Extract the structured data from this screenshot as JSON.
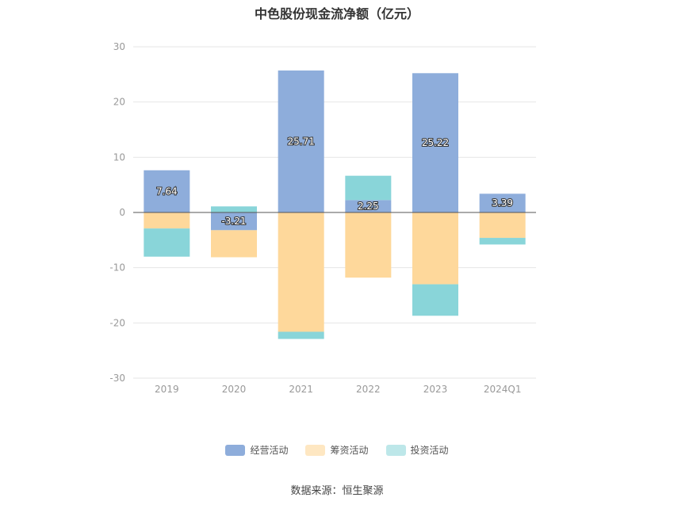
{
  "title": "中色股份现金流净额（亿元）",
  "source": "数据来源：恒生聚源",
  "colors": {
    "operating": "#8eaddb",
    "financing": "#fed89b",
    "investing": "#89d5d9",
    "grid": "#e6e6e6",
    "axis_text": "#999999",
    "zero_line": "#555555",
    "label_text": "#ffffff"
  },
  "chart_data": {
    "type": "bar",
    "stacked": true,
    "title": "中色股份现金流净额（亿元）",
    "xlabel": "",
    "ylabel": "",
    "ylim": [
      -30,
      30
    ],
    "yticks": [
      -30,
      -20,
      -10,
      0,
      10,
      20,
      30
    ],
    "grid": true,
    "legend_position": "bottom",
    "categories": [
      "2019",
      "2020",
      "2021",
      "2022",
      "2023",
      "2024Q1"
    ],
    "series": [
      {
        "name": "经营活动",
        "color_key": "operating",
        "values": [
          7.64,
          -3.21,
          25.71,
          2.25,
          25.22,
          3.39
        ],
        "labels": [
          "7.64",
          "-3.21",
          "25.71",
          "2.25",
          "25.22",
          "3.39"
        ]
      },
      {
        "name": "筹资活动",
        "color_key": "financing",
        "values": [
          -2.9,
          -4.9,
          -21.6,
          -11.8,
          -13.0,
          -4.6
        ]
      },
      {
        "name": "投资活动",
        "color_key": "investing",
        "values": [
          -5.1,
          1.1,
          -1.3,
          4.4,
          -5.7,
          -1.2
        ]
      }
    ]
  }
}
